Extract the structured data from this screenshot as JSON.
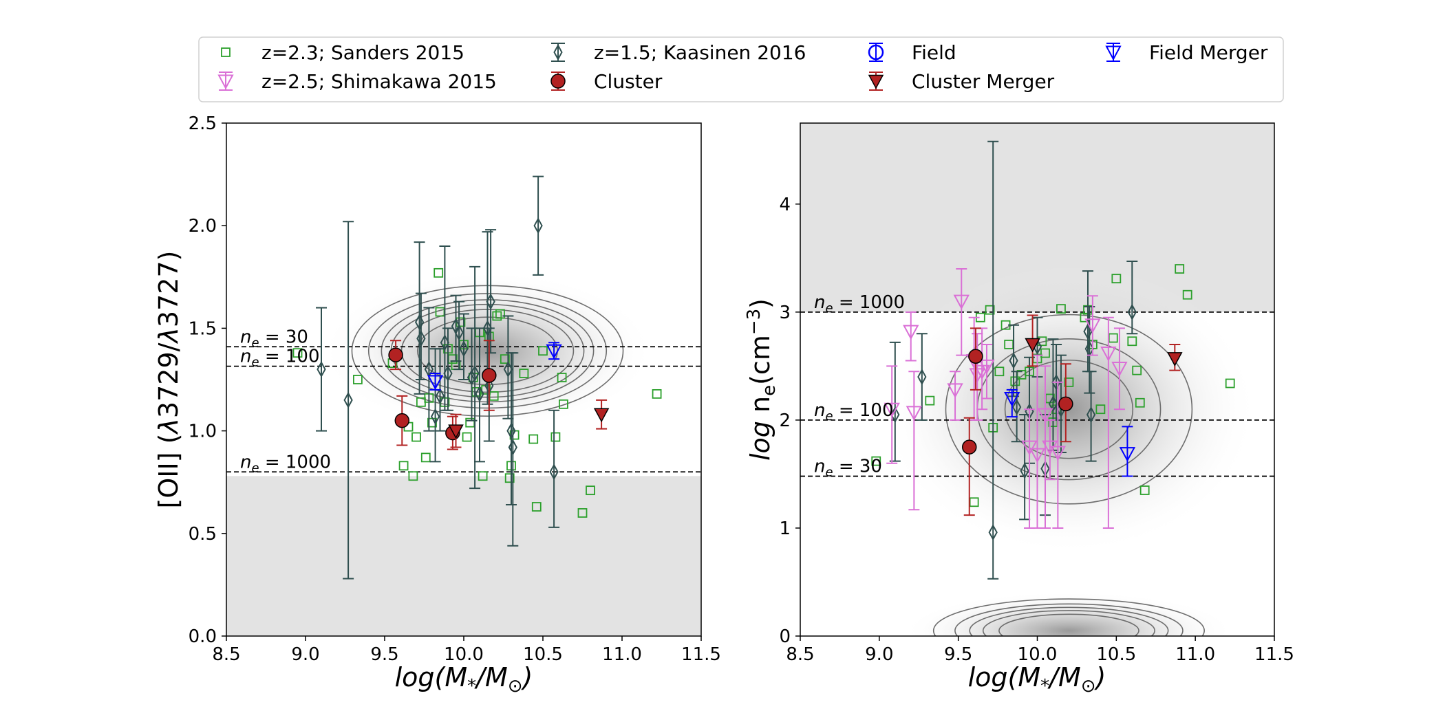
{
  "legend": [
    {
      "label": "z=2.3; Sanders 2015",
      "marker": "square",
      "color": "#2ca02c",
      "filled": false,
      "errorbar": false
    },
    {
      "label": "z=1.5; Kaasinen 2016",
      "marker": "thin-diamond",
      "color": "#2f4f4f",
      "filled": false,
      "errorbar": true
    },
    {
      "label": "Field",
      "marker": "circle",
      "color": "#0000ff",
      "filled": false,
      "errorbar": true
    },
    {
      "label": "Field Merger",
      "marker": "triangle-down",
      "color": "#0000ff",
      "filled": false,
      "errorbar": true
    },
    {
      "label": "z=2.5; Shimakawa 2015",
      "marker": "triangle-down",
      "color": "#da70d6",
      "filled": false,
      "errorbar": true
    },
    {
      "label": "Cluster",
      "marker": "circle",
      "color": "#b22222",
      "filled": true,
      "errorbar": true
    },
    {
      "label": "Cluster Merger",
      "marker": "triangle-down",
      "color": "#b22222",
      "filled": true,
      "errorbar": true
    }
  ],
  "chart_data": [
    {
      "type": "scatter",
      "xlabel": "log(M*/M⊙)",
      "ylabel": "[OII] (λ3729/λ3727)",
      "xlim": [
        8.5,
        11.5
      ],
      "ylim": [
        0.0,
        2.5
      ],
      "xticks": [
        "8.5",
        "9.0",
        "9.5",
        "10.0",
        "10.5",
        "11.0",
        "11.5"
      ],
      "yticks": [
        "0.0",
        "0.5",
        "1.0",
        "1.5",
        "2.0",
        "2.5"
      ],
      "xtick_values": [
        8.5,
        9.0,
        9.5,
        10.0,
        10.5,
        11.0,
        11.5
      ],
      "ytick_values": [
        0.0,
        0.5,
        1.0,
        1.5,
        2.0,
        2.5
      ],
      "shaded_region": {
        "y": [
          0.0,
          0.78
        ]
      },
      "density": {
        "center": [
          10.15,
          1.39
        ],
        "sigma": [
          0.35,
          0.13
        ],
        "contours": [
          0.45,
          0.3,
          0.22,
          0.16,
          0.1,
          0.05
        ]
      },
      "reference_lines": [
        {
          "label_html": "n_e = 30",
          "y": 1.41
        },
        {
          "label_html": "n_e = 100",
          "y": 1.315
        },
        {
          "label_html": "n_e = 1000",
          "y": 0.8
        }
      ],
      "series": [
        {
          "name": "z=2.3; Sanders 2015",
          "marker": "square",
          "color": "#2ca02c",
          "points": [
            [
              8.95,
              1.38
            ],
            [
              9.33,
              1.25
            ],
            [
              9.55,
              1.33
            ],
            [
              9.62,
              0.83
            ],
            [
              9.65,
              1.02
            ],
            [
              9.68,
              0.78
            ],
            [
              9.7,
              0.97
            ],
            [
              9.73,
              1.14
            ],
            [
              9.76,
              0.87
            ],
            [
              9.78,
              1.16
            ],
            [
              9.8,
              1.04
            ],
            [
              9.84,
              1.77
            ],
            [
              9.85,
              1.58
            ],
            [
              9.88,
              1.14
            ],
            [
              9.9,
              1.4
            ],
            [
              9.93,
              1.35
            ],
            [
              9.95,
              1.32
            ],
            [
              9.98,
              1.53
            ],
            [
              10.0,
              1.42
            ],
            [
              10.02,
              0.97
            ],
            [
              10.04,
              1.04
            ],
            [
              10.06,
              1.26
            ],
            [
              10.08,
              1.19
            ],
            [
              10.1,
              1.48
            ],
            [
              10.12,
              0.78
            ],
            [
              10.14,
              1.2
            ],
            [
              10.16,
              1.46
            ],
            [
              10.19,
              1.17
            ],
            [
              10.21,
              1.56
            ],
            [
              10.23,
              1.57
            ],
            [
              10.26,
              1.35
            ],
            [
              10.29,
              0.77
            ],
            [
              10.3,
              0.83
            ],
            [
              10.32,
              0.98
            ],
            [
              10.38,
              1.28
            ],
            [
              10.44,
              0.96
            ],
            [
              10.46,
              0.63
            ],
            [
              10.5,
              1.39
            ],
            [
              10.58,
              0.97
            ],
            [
              10.62,
              1.26
            ],
            [
              10.63,
              1.13
            ],
            [
              10.75,
              0.6
            ],
            [
              10.8,
              0.71
            ],
            [
              11.22,
              1.18
            ]
          ]
        },
        {
          "name": "z=1.5; Kaasinen 2016",
          "marker": "thin-diamond",
          "color": "#2f4f4f",
          "points": [
            [
              9.1,
              1.3,
              1.0,
              1.6
            ],
            [
              9.27,
              1.15,
              0.28,
              2.02
            ],
            [
              9.72,
              1.53,
              1.18,
              1.92
            ],
            [
              9.73,
              1.45,
              1.25,
              1.67
            ],
            [
              9.78,
              1.3,
              1.0,
              1.6
            ],
            [
              9.82,
              1.07,
              0.85,
              1.4
            ],
            [
              9.85,
              1.17,
              1.0,
              1.4
            ],
            [
              9.88,
              1.43,
              1.1,
              1.9
            ],
            [
              9.9,
              1.28,
              1.1,
              1.5
            ],
            [
              9.95,
              1.51,
              1.34,
              1.66
            ],
            [
              9.97,
              1.48,
              1.3,
              1.63
            ],
            [
              10.0,
              1.4,
              1.25,
              1.57
            ],
            [
              10.05,
              1.26,
              1.05,
              1.5
            ],
            [
              10.07,
              1.28,
              0.72,
              1.8
            ],
            [
              10.1,
              1.18,
              0.85,
              1.5
            ],
            [
              10.15,
              1.5,
              1.13,
              1.97
            ],
            [
              10.17,
              1.63,
              1.38,
              1.98
            ],
            [
              10.16,
              1.22,
              0.95,
              1.5
            ],
            [
              10.28,
              1.3,
              1.06,
              1.56
            ],
            [
              10.3,
              1.0,
              0.64,
              1.38
            ],
            [
              10.31,
              0.92,
              0.44,
              1.38
            ],
            [
              10.47,
              2.0,
              1.76,
              2.24
            ],
            [
              10.57,
              0.8,
              0.53,
              1.1
            ]
          ]
        },
        {
          "name": "Field Merger",
          "marker": "triangle-down",
          "color": "#0000ff",
          "filled": false,
          "points": [
            [
              9.82,
              1.24,
              1.2,
              1.28
            ],
            [
              10.57,
              1.39,
              1.35,
              1.43
            ]
          ]
        },
        {
          "name": "Cluster",
          "marker": "circle",
          "color": "#b22222",
          "filled": true,
          "points": [
            [
              9.57,
              1.37,
              1.3,
              1.44
            ],
            [
              9.61,
              1.05,
              0.93,
              1.17
            ],
            [
              9.93,
              0.99,
              0.91,
              1.07
            ],
            [
              10.16,
              1.27,
              1.1,
              1.44
            ]
          ]
        },
        {
          "name": "Cluster Merger",
          "marker": "triangle-down",
          "color": "#b22222",
          "filled": true,
          "points": [
            [
              9.95,
              1.0,
              0.92,
              1.08
            ],
            [
              10.87,
              1.08,
              1.01,
              1.15
            ]
          ]
        }
      ]
    },
    {
      "type": "scatter",
      "xlabel": "log(M*/M⊙)",
      "ylabel": "log ne(cm−3)",
      "xlim": [
        8.5,
        11.5
      ],
      "ylim": [
        0.0,
        4.75
      ],
      "xticks": [
        "8.5",
        "9.0",
        "9.5",
        "10.0",
        "10.5",
        "11.0",
        "11.5"
      ],
      "yticks": [
        "0",
        "1",
        "2",
        "3",
        "4"
      ],
      "xtick_values": [
        8.5,
        9.0,
        9.5,
        10.0,
        10.5,
        11.0,
        11.5
      ],
      "ytick_values": [
        0,
        1,
        2,
        3,
        4
      ],
      "shaded_region": {
        "y": [
          3.0,
          4.75
        ]
      },
      "density": {
        "center": [
          10.2,
          2.1
        ],
        "sigma": [
          0.4,
          0.45
        ],
        "contours": [
          0.6,
          0.35,
          0.15
        ]
      },
      "density2": {
        "center": [
          10.2,
          0.05
        ],
        "sigma": [
          0.35,
          0.12
        ],
        "contours": [
          0.45,
          0.3,
          0.2,
          0.12,
          0.05
        ]
      },
      "reference_lines": [
        {
          "label_html": "n_e = 1000",
          "y": 3.0
        },
        {
          "label_html": "n_e = 100",
          "y": 2.0
        },
        {
          "label_html": "n_e = 30",
          "y": 1.48
        }
      ],
      "series": [
        {
          "name": "z=2.3; Sanders 2015",
          "marker": "square",
          "color": "#2ca02c",
          "points": [
            [
              8.98,
              1.62
            ],
            [
              9.32,
              2.18
            ],
            [
              9.6,
              1.24
            ],
            [
              9.64,
              2.95
            ],
            [
              9.7,
              3.02
            ],
            [
              9.72,
              1.93
            ],
            [
              9.76,
              2.45
            ],
            [
              9.8,
              2.88
            ],
            [
              9.82,
              2.7
            ],
            [
              9.86,
              2.36
            ],
            [
              9.9,
              2.42
            ],
            [
              9.95,
              2.45
            ],
            [
              10.0,
              2.57
            ],
            [
              10.03,
              2.73
            ],
            [
              10.05,
              2.62
            ],
            [
              10.08,
              2.2
            ],
            [
              10.1,
              1.98
            ],
            [
              10.12,
              2.1
            ],
            [
              10.15,
              3.03
            ],
            [
              10.2,
              2.35
            ],
            [
              10.3,
              2.95
            ],
            [
              10.32,
              3.02
            ],
            [
              10.35,
              2.7
            ],
            [
              10.4,
              2.1
            ],
            [
              10.48,
              2.76
            ],
            [
              10.5,
              3.31
            ],
            [
              10.6,
              2.73
            ],
            [
              10.63,
              2.46
            ],
            [
              10.65,
              2.16
            ],
            [
              10.68,
              1.35
            ],
            [
              10.9,
              3.4
            ],
            [
              10.95,
              3.16
            ],
            [
              11.22,
              2.34
            ]
          ]
        },
        {
          "name": "z=1.5; Kaasinen 2016",
          "marker": "thin-diamond",
          "color": "#2f4f4f",
          "points": [
            [
              9.1,
              2.05,
              1.62,
              2.72
            ],
            [
              9.27,
              2.4,
              2.0,
              2.8
            ],
            [
              9.72,
              0.96,
              0.53,
              4.58
            ],
            [
              9.85,
              2.55,
              2.22,
              2.88
            ],
            [
              9.87,
              2.12,
              1.8,
              2.45
            ],
            [
              9.92,
              1.53,
              1.08,
              2.05
            ],
            [
              9.95,
              2.08,
              1.6,
              2.58
            ],
            [
              10.0,
              2.68,
              2.4,
              2.95
            ],
            [
              10.05,
              1.55,
              1.12,
              2.05
            ],
            [
              10.1,
              2.15,
              1.72,
              2.75
            ],
            [
              10.12,
              2.35,
              2.0,
              2.7
            ],
            [
              10.15,
              2.1,
              1.7,
              2.6
            ],
            [
              10.32,
              2.82,
              2.45,
              3.38
            ],
            [
              10.33,
              2.66,
              2.25,
              3.05
            ],
            [
              10.34,
              2.05,
              1.62,
              2.45
            ],
            [
              10.6,
              3.0,
              2.8,
              3.47
            ]
          ]
        },
        {
          "name": "z=2.5; Shimakawa 2015",
          "marker": "triangle-down",
          "color": "#da70d6",
          "points": [
            [
              9.08,
              2.1,
              1.6,
              2.5
            ],
            [
              9.2,
              2.82,
              2.55,
              3.0
            ],
            [
              9.22,
              2.07,
              1.17,
              2.45
            ],
            [
              9.48,
              2.28,
              2.0,
              2.45
            ],
            [
              9.52,
              3.1,
              2.6,
              3.4
            ],
            [
              9.6,
              2.55,
              2.0,
              2.95
            ],
            [
              9.62,
              2.42,
              2.0,
              2.8
            ],
            [
              9.65,
              2.45,
              2.1,
              2.85
            ],
            [
              9.68,
              2.5,
              2.2,
              2.7
            ],
            [
              9.95,
              1.75,
              1.0,
              2.1
            ],
            [
              10.0,
              1.68,
              1.0,
              2.6
            ],
            [
              10.05,
              2.05,
              1.0,
              2.5
            ],
            [
              10.08,
              1.75,
              1.45,
              2.0
            ],
            [
              10.13,
              1.7,
              1.0,
              2.35
            ],
            [
              10.35,
              2.88,
              2.6,
              3.15
            ],
            [
              10.45,
              2.62,
              1.0,
              2.95
            ],
            [
              10.52,
              2.48,
              2.1,
              2.85
            ]
          ]
        },
        {
          "name": "Field Merger",
          "marker": "triangle-down",
          "color": "#0000ff",
          "filled": false,
          "points": [
            [
              9.84,
              2.2,
              2.03,
              2.28
            ],
            [
              10.57,
              1.69,
              1.48,
              1.94
            ]
          ]
        },
        {
          "name": "Cluster",
          "marker": "circle",
          "color": "#b22222",
          "filled": true,
          "points": [
            [
              9.57,
              1.75,
              1.12,
              2.02
            ],
            [
              9.61,
              2.59,
              2.28,
              2.85
            ],
            [
              10.18,
              2.15,
              1.8,
              2.52
            ]
          ]
        },
        {
          "name": "Cluster Merger",
          "marker": "triangle-down",
          "color": "#b22222",
          "filled": true,
          "points": [
            [
              9.97,
              2.7,
              2.5,
              2.97
            ],
            [
              10.87,
              2.57,
              2.46,
              2.7
            ]
          ]
        }
      ]
    }
  ]
}
